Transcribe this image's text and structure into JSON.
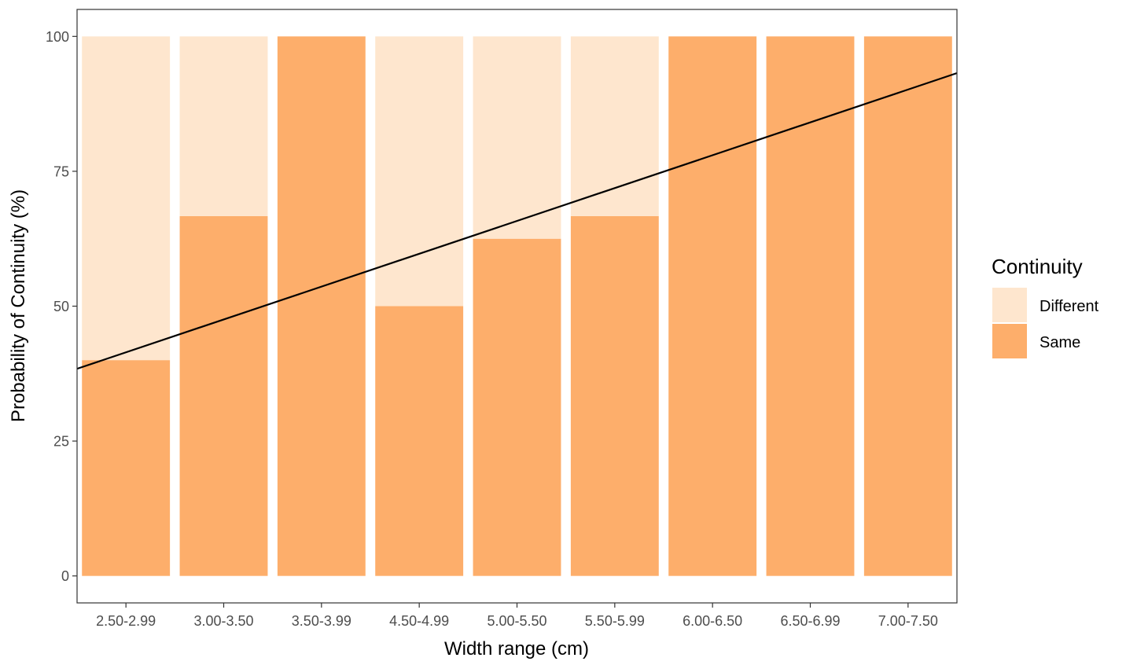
{
  "chart_data": {
    "type": "bar",
    "stacked": true,
    "categories": [
      "2.50-2.99",
      "3.00-3.50",
      "3.50-3.99",
      "4.50-4.99",
      "5.00-5.50",
      "5.50-5.99",
      "6.00-6.50",
      "6.50-6.99",
      "7.00-7.50"
    ],
    "series": [
      {
        "name": "Same",
        "color": "#FDAE6B",
        "values": [
          40,
          66.7,
          100,
          50,
          62.5,
          66.7,
          100,
          100,
          100
        ]
      },
      {
        "name": "Different",
        "color": "#FEE6CE",
        "values": [
          60,
          33.3,
          0,
          50,
          37.5,
          33.3,
          0,
          0,
          0
        ]
      }
    ],
    "trend_line": {
      "color": "#000000",
      "y_at_left_edge": 38.4,
      "y_at_right_edge": 93.2
    },
    "xlabel": "Width range (cm)",
    "ylabel": "Probability of Continuity (%)",
    "ylim": [
      -5,
      105
    ],
    "yticks": [
      0,
      25,
      50,
      75,
      100
    ],
    "legend": {
      "title": "Continuity",
      "position": "right",
      "entries": [
        "Different",
        "Same"
      ]
    },
    "grid": false
  }
}
